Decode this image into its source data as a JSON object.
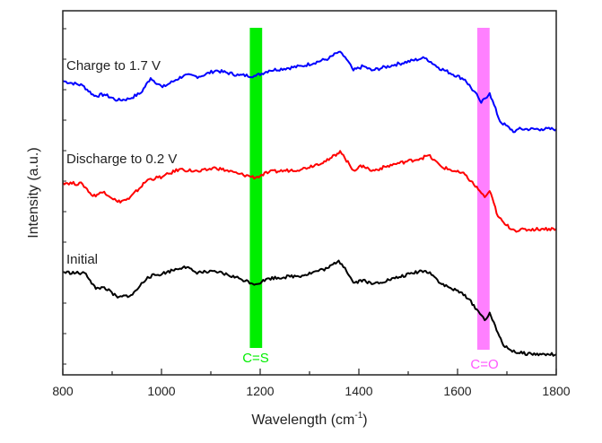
{
  "chart_data": {
    "type": "line",
    "xlabel": "Wavelength (cm",
    "xlabel_sup": "-1",
    "xlabel_close": ")",
    "ylabel": "Intensity (a.u.)",
    "xlim": [
      800,
      1800
    ],
    "ylim": [
      0,
      100
    ],
    "x_ticks": [
      800,
      1000,
      1200,
      1400,
      1600,
      1800
    ],
    "x_tick_labels": [
      "800",
      "1000",
      "1200",
      "1400",
      "1600",
      "1800"
    ],
    "y_tick_labels_shown": false,
    "grid": false,
    "series": [
      {
        "name": "Charge to 1.7 V",
        "color": "#0000ff",
        "x": [
          800,
          840,
          864,
          884,
          911,
          934,
          958,
          978,
          1002,
          1029,
          1046,
          1076,
          1110,
          1157,
          1191,
          1218,
          1285,
          1339,
          1359,
          1372,
          1389,
          1409,
          1426,
          1473,
          1527,
          1537,
          1561,
          1615,
          1642,
          1648,
          1665,
          1686,
          1716,
          1723,
          1770,
          1800
        ],
        "y": [
          80.7,
          79.5,
          76.6,
          77.0,
          75.4,
          75.8,
          77.4,
          81.5,
          79.0,
          81.0,
          82.3,
          81.9,
          83.6,
          82.3,
          82.1,
          83.6,
          84.8,
          86.9,
          88.7,
          87.3,
          83.6,
          84.8,
          83.6,
          85.2,
          86.9,
          86.9,
          84.4,
          81.1,
          76.2,
          74.7,
          77.4,
          69.6,
          66.7,
          67.5,
          67.5,
          67.5
        ]
      },
      {
        "name": "Discharge to 0.2 V",
        "color": "#ff0000",
        "x": [
          800,
          840,
          861,
          884,
          911,
          934,
          972,
          1002,
          1036,
          1076,
          1110,
          1157,
          1191,
          1218,
          1285,
          1339,
          1362,
          1372,
          1389,
          1409,
          1426,
          1473,
          1527,
          1541,
          1568,
          1615,
          1645,
          1655,
          1665,
          1682,
          1696,
          1716,
          1770,
          1800
        ],
        "y": [
          52.8,
          52.4,
          49.1,
          50.3,
          47.5,
          48.3,
          53.6,
          54.4,
          56.5,
          55.8,
          56.9,
          55.2,
          54.2,
          55.7,
          56.5,
          59.0,
          61.5,
          59.4,
          56.2,
          57.5,
          56.0,
          57.9,
          59.5,
          60.3,
          57.1,
          55.0,
          50.5,
          48.8,
          50.5,
          43.5,
          41.3,
          39.7,
          40.1,
          40.1
        ]
      },
      {
        "name": "Initial",
        "color": "#000000",
        "x": [
          800,
          847,
          867,
          884,
          911,
          941,
          972,
          1002,
          1046,
          1069,
          1116,
          1157,
          1191,
          1218,
          1285,
          1339,
          1359,
          1372,
          1389,
          1409,
          1426,
          1473,
          1527,
          1544,
          1568,
          1615,
          1642,
          1655,
          1665,
          1679,
          1696,
          1723,
          1770,
          1800
        ],
        "y": [
          28.2,
          27.8,
          23.6,
          24.1,
          21.2,
          22.0,
          26.9,
          27.8,
          29.8,
          28.2,
          28.2,
          26.5,
          24.9,
          26.5,
          27.3,
          29.4,
          31.4,
          29.4,
          25.3,
          26.1,
          24.9,
          26.5,
          28.6,
          28.2,
          24.9,
          22.0,
          17.5,
          15.0,
          17.1,
          12.2,
          7.6,
          6.0,
          5.6,
          5.6
        ]
      }
    ],
    "bands": [
      {
        "label": "C=S",
        "x_range": [
          1179,
          1204
        ],
        "color": "#00ee00"
      },
      {
        "label": "C=O",
        "x_range": [
          1640,
          1665
        ],
        "color": "#ff80ff"
      }
    ]
  }
}
